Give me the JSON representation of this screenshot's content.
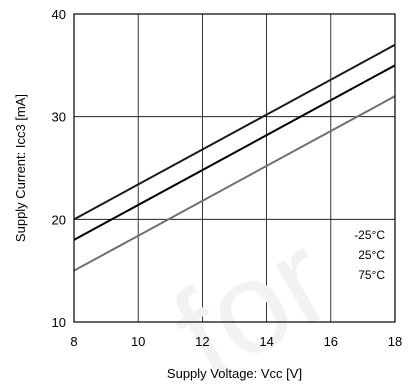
{
  "chart_data": {
    "type": "line",
    "title": "",
    "xlabel": "Supply Voltage: Vcc [V]",
    "ylabel": "Supply Current: Icc3 [mA]",
    "xlim": [
      8,
      18
    ],
    "ylim": [
      10,
      40
    ],
    "xticks": [
      8,
      10,
      12,
      14,
      16,
      18
    ],
    "yticks": [
      10,
      20,
      30,
      40
    ],
    "grid": true,
    "legend_position": "lower-right",
    "series": [
      {
        "name": "-25°C",
        "x": [
          8,
          18
        ],
        "y": [
          20,
          37
        ],
        "color": "#1a1a1a"
      },
      {
        "name": "25°C",
        "x": [
          8,
          18
        ],
        "y": [
          18,
          35
        ],
        "color": "#000000"
      },
      {
        "name": "75°C",
        "x": [
          8,
          18
        ],
        "y": [
          15,
          32
        ],
        "color": "#707070"
      }
    ],
    "watermark": "for"
  }
}
